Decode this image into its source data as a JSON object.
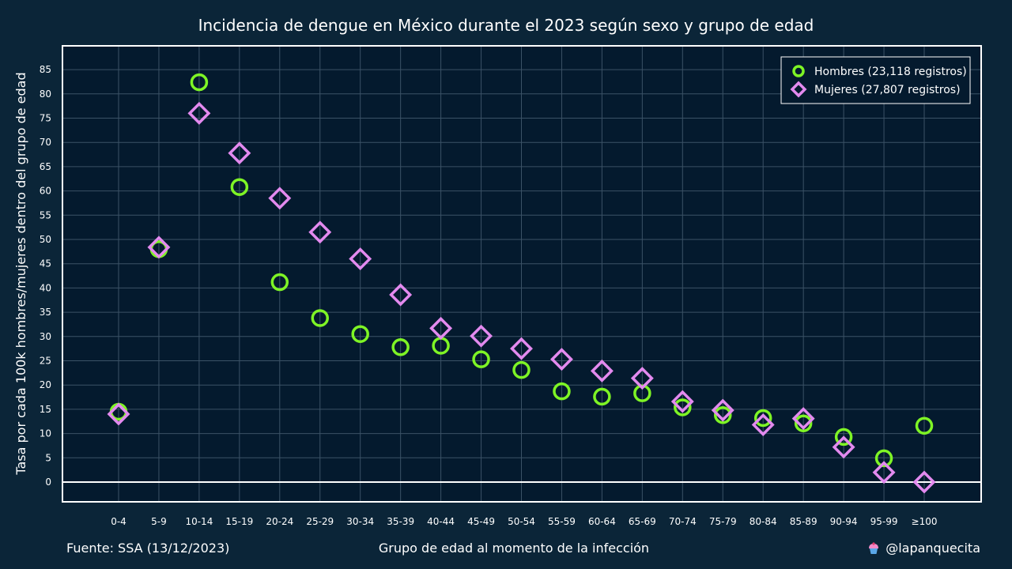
{
  "title": "Incidencia de dengue en México durante el 2023 según sexo y grupo de edad",
  "source": "Fuente: SSA (13/12/2023)",
  "handle": "@lapanquecita",
  "colors": {
    "background": "#0b2538",
    "plot_background": "#041a2e",
    "grid": "#3b5266",
    "hombres": "#7ef425",
    "mujeres": "#e38aef"
  },
  "chart_data": {
    "type": "scatter",
    "title": "Incidencia de dengue en México durante el 2023 según sexo y grupo de edad",
    "xlabel": "Grupo de edad al momento de la infección",
    "ylabel": "Tasa por cada 100k hombres/mujeres dentro del grupo de edad",
    "categories": [
      "0-4",
      "5-9",
      "10-14",
      "15-19",
      "20-24",
      "25-29",
      "30-34",
      "35-39",
      "40-44",
      "45-49",
      "50-54",
      "55-59",
      "60-64",
      "65-69",
      "70-74",
      "75-79",
      "80-84",
      "85-89",
      "90-94",
      "95-99",
      "≥100"
    ],
    "ylim": [
      -4,
      89
    ],
    "yticks": [
      0,
      5,
      10,
      15,
      20,
      25,
      30,
      35,
      40,
      45,
      50,
      55,
      60,
      65,
      70,
      75,
      80,
      85
    ],
    "grid": true,
    "legend_position": "top-right",
    "series": [
      {
        "name": "Hombres (23,118 registros)",
        "marker": "circle",
        "values": [
          14.5,
          48.0,
          82.4,
          60.8,
          41.2,
          33.8,
          30.5,
          27.8,
          28.1,
          25.3,
          23.1,
          18.7,
          17.6,
          18.3,
          15.4,
          13.8,
          13.2,
          12.1,
          9.3,
          4.9,
          11.6
        ]
      },
      {
        "name": "Mujeres (27,807 registros)",
        "marker": "diamond",
        "values": [
          14.0,
          48.4,
          76.0,
          67.8,
          58.5,
          51.5,
          46.0,
          38.6,
          31.7,
          30.1,
          27.5,
          25.3,
          22.9,
          21.4,
          16.6,
          14.8,
          11.8,
          13.1,
          7.2,
          2.0,
          0.0
        ]
      }
    ]
  }
}
